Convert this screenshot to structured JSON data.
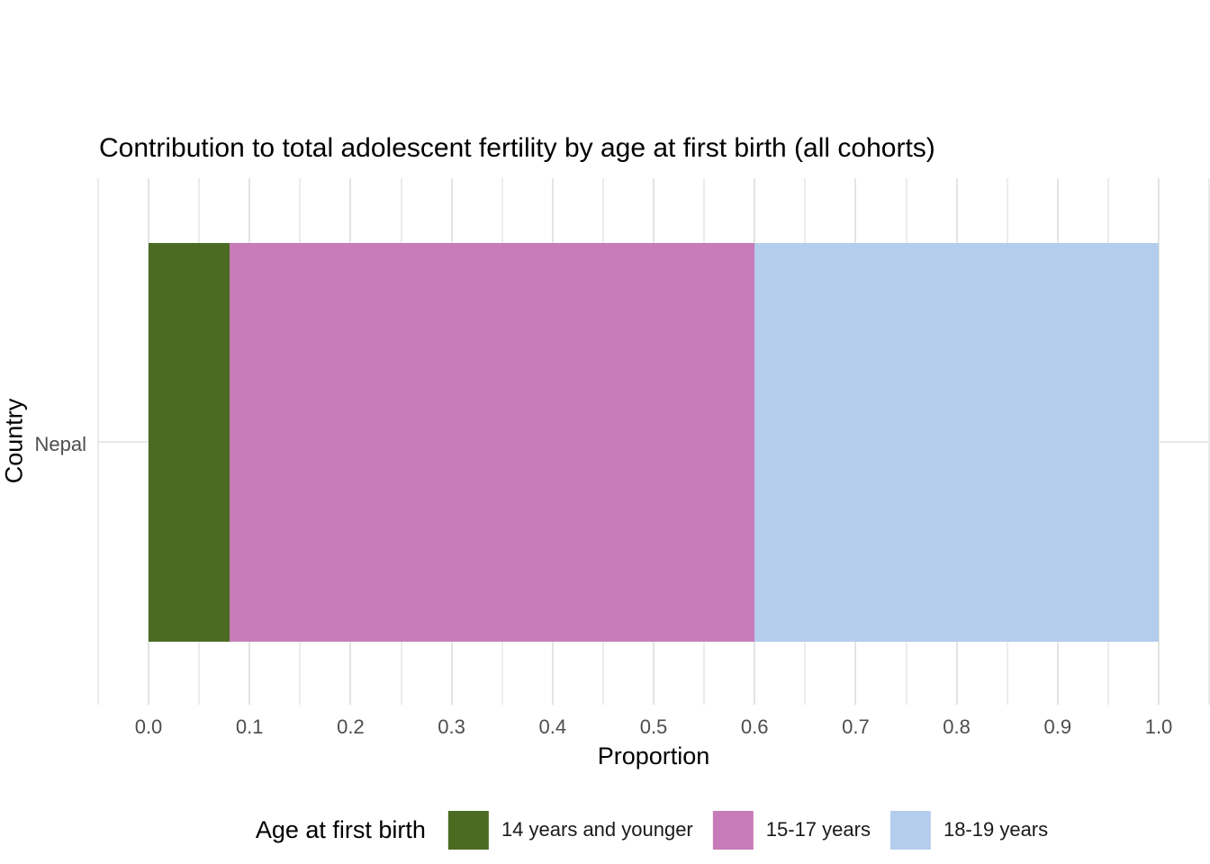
{
  "chart_data": {
    "type": "bar",
    "orientation": "horizontal",
    "stacked": true,
    "title": "Contribution to total adolescent fertility by age at first birth (all cohorts)",
    "xlabel": "Proportion",
    "ylabel": "Country",
    "categories": [
      "Nepal"
    ],
    "series": [
      {
        "name": "14 years and younger",
        "values": [
          0.08
        ],
        "color": "#4C6B22"
      },
      {
        "name": "15-17 years",
        "values": [
          0.52
        ],
        "color": "#C77CB9"
      },
      {
        "name": "18-19 years",
        "values": [
          0.4
        ],
        "color": "#B4CDEC"
      }
    ],
    "xlim": [
      0,
      1
    ],
    "x_tick_labels": [
      "0.0",
      "0.1",
      "0.2",
      "0.3",
      "0.4",
      "0.5",
      "0.6",
      "0.7",
      "0.8",
      "0.9",
      "1.0"
    ],
    "x_minor_step": 0.05,
    "grid": "vertical gridlines every 0.05 and one horizontal gridline at category, light gray on white",
    "legend_position": "bottom",
    "tick_label_color": "#4D4D4D",
    "gridline_color": "#E7E7E7"
  },
  "legend": {
    "title": "Age at first birth"
  }
}
